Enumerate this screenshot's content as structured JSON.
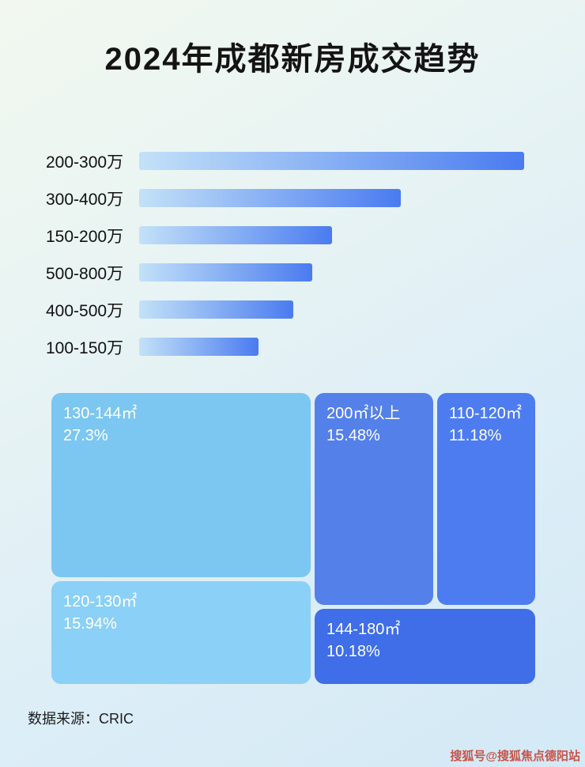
{
  "page": {
    "title": "2024年成都新房成交趋势",
    "source": "数据来源：CRIC",
    "watermark": "搜狐号@搜狐焦点德阳站"
  },
  "chart_data": [
    {
      "type": "bar",
      "orientation": "horizontal",
      "title": "2024年成都新房成交趋势",
      "categories": [
        "200-300万",
        "300-400万",
        "150-200万",
        "500-800万",
        "400-500万",
        "100-150万"
      ],
      "values_pct_of_max": [
        100,
        68,
        50,
        45,
        40,
        31
      ],
      "value_labels_shown": false,
      "axis_labels_shown": false,
      "grid": false,
      "bar_gradient": [
        "#c3e1f8",
        "#4a7bf0"
      ]
    },
    {
      "type": "treemap",
      "blocks": [
        {
          "label": "130-144㎡",
          "percent": "27.3%",
          "value": 27.3,
          "color": "#7cc6f2"
        },
        {
          "label": "200㎡以上",
          "percent": "15.48%",
          "value": 15.48,
          "color": "#5480ea"
        },
        {
          "label": "110-120㎡",
          "percent": "11.18%",
          "value": 11.18,
          "color": "#4d7cf0"
        },
        {
          "label": "120-130㎡",
          "percent": "15.94%",
          "value": 15.94,
          "color": "#8bd0f7"
        },
        {
          "label": "144-180㎡",
          "percent": "10.18%",
          "value": 10.18,
          "color": "#3f6ee8"
        }
      ]
    }
  ]
}
